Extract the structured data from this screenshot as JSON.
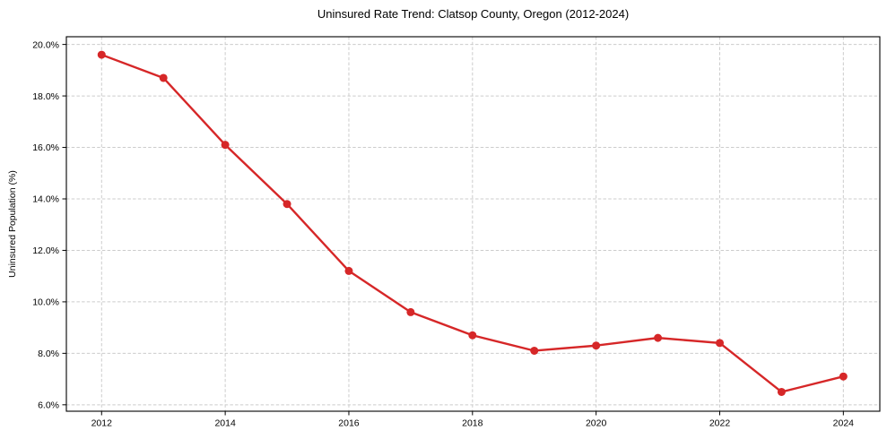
{
  "chart_data": {
    "type": "line",
    "title": "Uninsured Rate Trend: Clatsop County, Oregon (2012-2024)",
    "xlabel": "",
    "ylabel": "Uninsured Population (%)",
    "x": [
      2012,
      2013,
      2014,
      2015,
      2016,
      2017,
      2018,
      2019,
      2020,
      2021,
      2022,
      2023,
      2024
    ],
    "series": [
      {
        "values": [
          19.6,
          18.7,
          16.1,
          13.8,
          11.2,
          9.6,
          8.7,
          8.1,
          8.3,
          8.6,
          8.4,
          6.5,
          7.1
        ],
        "color": "#d62728",
        "marker": "circle"
      }
    ],
    "x_ticks": [
      2012,
      2014,
      2016,
      2018,
      2020,
      2022,
      2024
    ],
    "x_tick_labels": [
      "2012",
      "2014",
      "2016",
      "2018",
      "2020",
      "2022",
      "2024"
    ],
    "y_ticks": [
      6,
      8,
      10,
      12,
      14,
      16,
      18,
      20
    ],
    "y_tick_labels": [
      "6.0%",
      "8.0%",
      "10.0%",
      "12.0%",
      "14.0%",
      "16.0%",
      "18.0%",
      "20.0%"
    ],
    "xlim": [
      2011.43,
      2024.59
    ],
    "ylim": [
      5.75,
      20.3
    ],
    "grid": true,
    "grid_style": "dashed",
    "grid_color": "#cccccc",
    "axis_color": "#000000",
    "text_color": "#000000",
    "background": "#ffffff",
    "legend": "none"
  }
}
